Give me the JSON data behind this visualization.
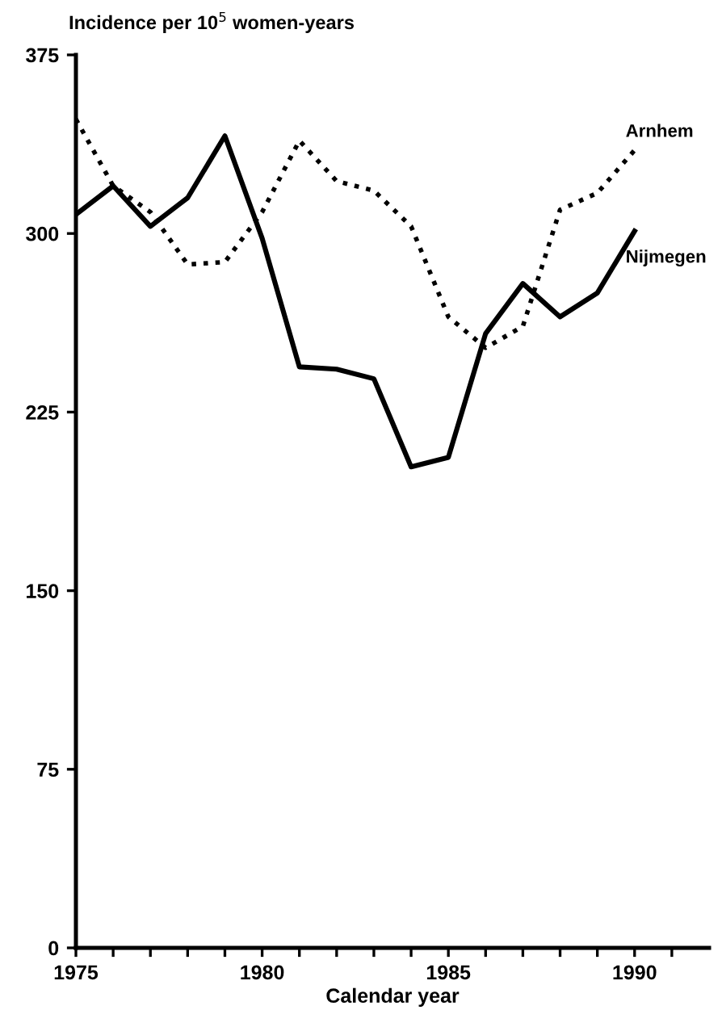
{
  "chart_data": {
    "type": "line",
    "ylabel": "Incidence per 10$^{5}$ women-years",
    "xlabel": "Calendar year",
    "x": [
      1975,
      1976,
      1977,
      1978,
      1979,
      1980,
      1981,
      1982,
      1983,
      1984,
      1985,
      1986,
      1987,
      1988,
      1989,
      1990
    ],
    "series": [
      {
        "name": "Arnhem",
        "color": "#000000",
        "line_style": "dotted",
        "values": [
          348,
          320,
          309,
          287,
          288,
          309,
          339,
          322,
          318,
          303,
          265,
          252,
          261,
          310,
          317,
          335
        ]
      },
      {
        "name": "Nijmegen",
        "color": "#000000",
        "line_style": "solid",
        "values": [
          308,
          320,
          303,
          315,
          341,
          298,
          244,
          243,
          239,
          202,
          206,
          258,
          279,
          265,
          275,
          301
        ]
      }
    ],
    "xlim": [
      1975,
      1992
    ],
    "xticks": [
      1975,
      {
        "value": 1976,
        "label": null
      },
      {
        "value": 1977,
        "label": null
      },
      {
        "value": 1978,
        "label": null
      },
      {
        "value": 1979,
        "label": null
      },
      1980,
      {
        "value": 1981,
        "label": null
      },
      {
        "value": 1982,
        "label": null
      },
      {
        "value": 1983,
        "label": null
      },
      {
        "value": 1984,
        "label": null
      },
      1985,
      {
        "value": 1986,
        "label": null
      },
      {
        "value": 1987,
        "label": null
      },
      {
        "value": 1988,
        "label": null
      },
      {
        "value": 1989,
        "label": null
      },
      1990,
      {
        "value": 1991,
        "label": null
      }
    ],
    "ylim": [
      0,
      375
    ],
    "yticks": [
      0,
      75,
      150,
      225,
      300,
      375
    ],
    "grid": false,
    "legend": false
  }
}
